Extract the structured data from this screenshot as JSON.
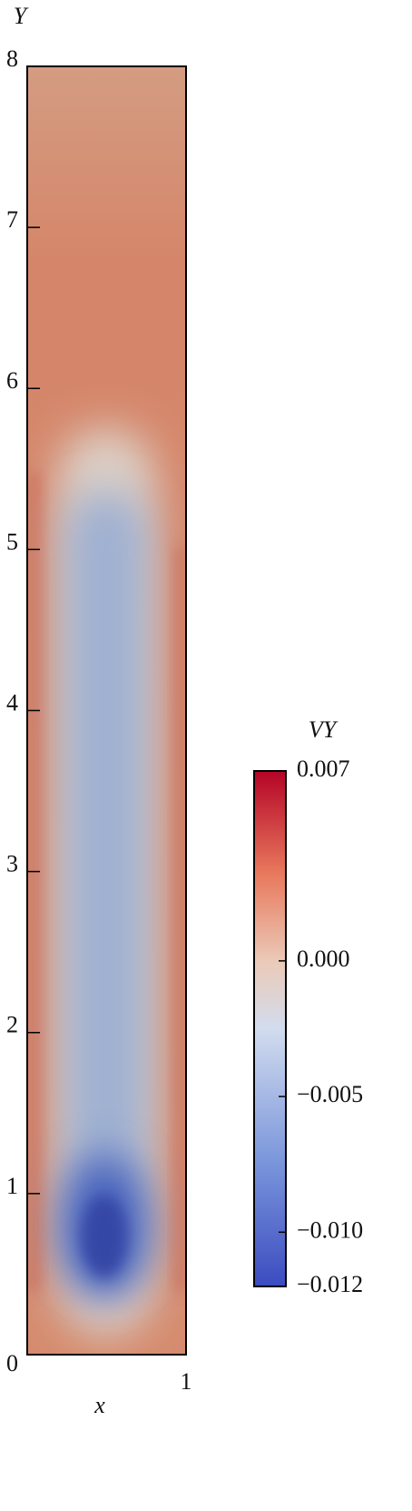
{
  "chart_data": {
    "type": "contour",
    "xlabel": "x",
    "ylabel": "Y",
    "xlim": [
      0,
      1
    ],
    "xticks": [
      1
    ],
    "ylim": [
      0,
      8
    ],
    "yticks": [
      0,
      1,
      2,
      3,
      4,
      5,
      6,
      7,
      8
    ],
    "colorbar": {
      "label": "VY",
      "lim": [
        -0.012,
        0.007
      ],
      "ticks": [
        0.007,
        {
          "value": 0,
          "label": "0.000"
        },
        {
          "value": -0.005,
          "label": "−0.005"
        },
        {
          "value": -0.01,
          "label": "−0.010"
        },
        {
          "value": -0.012,
          "label": "−0.012"
        }
      ]
    }
  }
}
